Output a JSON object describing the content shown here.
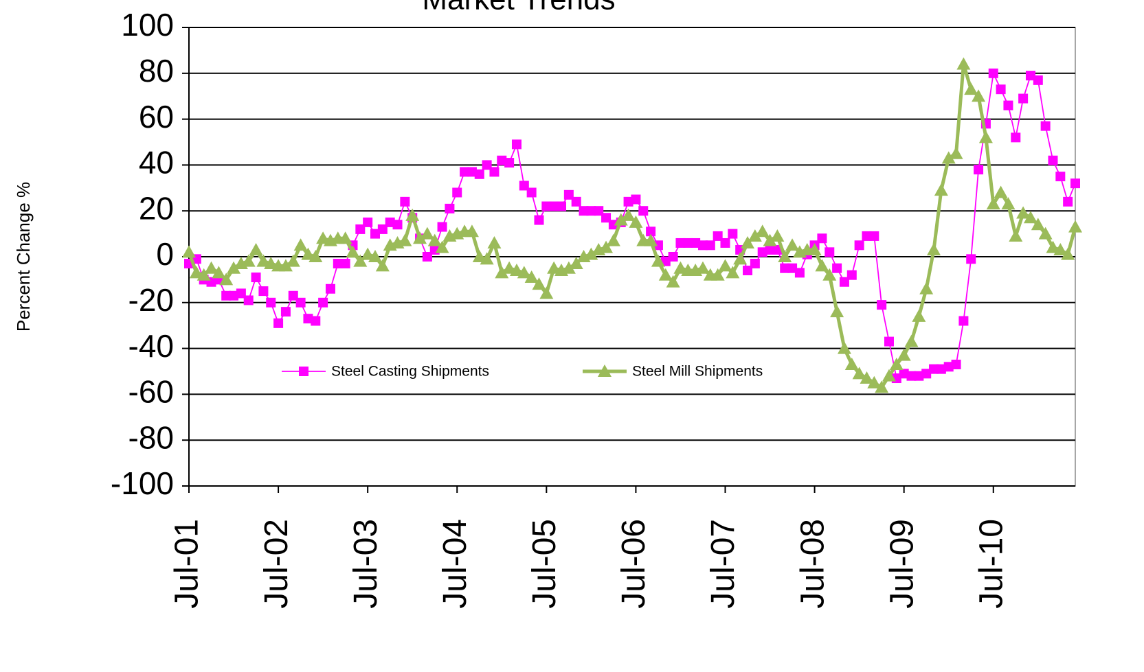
{
  "chart_data": {
    "type": "line",
    "title": "Market Trends",
    "y_label": "Percent Change %",
    "x": [
      "2001-07",
      "2001-08",
      "2001-09",
      "2001-10",
      "2001-11",
      "2001-12",
      "2002-01",
      "2002-02",
      "2002-03",
      "2002-04",
      "2002-05",
      "2002-06",
      "2002-07",
      "2002-08",
      "2002-09",
      "2002-10",
      "2002-11",
      "2002-12",
      "2003-01",
      "2003-02",
      "2003-03",
      "2003-04",
      "2003-05",
      "2003-06",
      "2003-07",
      "2003-08",
      "2003-09",
      "2003-10",
      "2003-11",
      "2003-12",
      "2004-01",
      "2004-02",
      "2004-03",
      "2004-04",
      "2004-05",
      "2004-06",
      "2004-07",
      "2004-08",
      "2004-09",
      "2004-10",
      "2004-11",
      "2004-12",
      "2005-01",
      "2005-02",
      "2005-03",
      "2005-04",
      "2005-05",
      "2005-06",
      "2005-07",
      "2005-08",
      "2005-09",
      "2005-10",
      "2005-11",
      "2005-12",
      "2006-01",
      "2006-02",
      "2006-03",
      "2006-04",
      "2006-05",
      "2006-06",
      "2006-07",
      "2006-08",
      "2006-09",
      "2006-10",
      "2006-11",
      "2006-12",
      "2007-01",
      "2007-02",
      "2007-03",
      "2007-04",
      "2007-05",
      "2007-06",
      "2007-07",
      "2007-08",
      "2007-09",
      "2007-10",
      "2007-11",
      "2007-12",
      "2008-01",
      "2008-02",
      "2008-03",
      "2008-04",
      "2008-05",
      "2008-06",
      "2008-07",
      "2008-08",
      "2008-09",
      "2008-10",
      "2008-11",
      "2008-12",
      "2009-01",
      "2009-02",
      "2009-03",
      "2009-04",
      "2009-05",
      "2009-06",
      "2009-07",
      "2009-08",
      "2009-09",
      "2009-10",
      "2009-11",
      "2009-12",
      "2010-01",
      "2010-02",
      "2010-03",
      "2010-04",
      "2010-05",
      "2010-06",
      "2010-07",
      "2010-08",
      "2010-09",
      "2010-10",
      "2010-11",
      "2010-12",
      "2011-01",
      "2011-02",
      "2011-03",
      "2011-04",
      "2011-05",
      "2011-06"
    ],
    "series": [
      {
        "name": "Steel Casting Shipments",
        "color": "#ff00ff",
        "marker": "square",
        "values": [
          -3,
          -1,
          -10,
          -11,
          -10,
          -17,
          -17,
          -16,
          -19,
          -9,
          -15,
          -20,
          -29,
          -24,
          -17,
          -20,
          -27,
          -28,
          -20,
          -14,
          -3,
          -3,
          5,
          12,
          15,
          10,
          12,
          15,
          14,
          24,
          17,
          8,
          0,
          3,
          13,
          21,
          28,
          37,
          37,
          36,
          40,
          37,
          42,
          41,
          49,
          31,
          28,
          16,
          22,
          22,
          22,
          27,
          24,
          20,
          20,
          20,
          17,
          14,
          15,
          24,
          25,
          20,
          11,
          5,
          -2,
          0,
          6,
          6,
          6,
          5,
          5,
          9,
          6,
          10,
          3,
          -6,
          -3,
          2,
          3,
          3,
          -5,
          -5,
          -7,
          1,
          5,
          8,
          2,
          -5,
          -11,
          -8,
          5,
          9,
          9,
          -21,
          -37,
          -53,
          -51,
          -52,
          -52,
          -51,
          -49,
          -49,
          -48,
          -47,
          -28,
          -1,
          38,
          58,
          80,
          73,
          66,
          52,
          69,
          79,
          77,
          57,
          42,
          35,
          24,
          32
        ]
      },
      {
        "name": "Steel Mill Shipments",
        "color": "#9bbb59",
        "marker": "triangle",
        "values": [
          2,
          -7,
          -8,
          -5,
          -7,
          -10,
          -5,
          -3,
          -2,
          3,
          -2,
          -3,
          -4,
          -4,
          -2,
          5,
          1,
          0,
          8,
          7,
          8,
          8,
          2,
          -2,
          1,
          0,
          -4,
          5,
          6,
          7,
          18,
          8,
          10,
          7,
          4,
          9,
          10,
          11,
          11,
          0,
          -1,
          6,
          -7,
          -5,
          -6,
          -7,
          -9,
          -12,
          -16,
          -5,
          -6,
          -5,
          -3,
          0,
          1,
          3,
          4,
          7,
          16,
          18,
          15,
          7,
          7,
          -2,
          -8,
          -11,
          -5,
          -6,
          -6,
          -5,
          -8,
          -8,
          -4,
          -7,
          -1,
          6,
          9,
          11,
          7,
          9,
          0,
          5,
          2,
          3,
          3,
          -4,
          -8,
          -24,
          -40,
          -47,
          -51,
          -53,
          -55,
          -57,
          -52,
          -47,
          -43,
          -37,
          -26,
          -14,
          3,
          29,
          43,
          45,
          84,
          73,
          70,
          52,
          23,
          28,
          23,
          9,
          19,
          17,
          14,
          10,
          4,
          3,
          1,
          13
        ]
      }
    ],
    "xlim": [
      "2001-07",
      "2011-06"
    ],
    "xticks": [
      {
        "value": "2001-07",
        "label": "Jul-01"
      },
      {
        "value": "2002-07",
        "label": "Jul-02"
      },
      {
        "value": "2003-07",
        "label": "Jul-03"
      },
      {
        "value": "2004-07",
        "label": "Jul-04"
      },
      {
        "value": "2005-07",
        "label": "Jul-05"
      },
      {
        "value": "2006-07",
        "label": "Jul-06"
      },
      {
        "value": "2007-07",
        "label": "Jul-07"
      },
      {
        "value": "2008-07",
        "label": "Jul-08"
      },
      {
        "value": "2009-07",
        "label": "Jul-09"
      },
      {
        "value": "2010-07",
        "label": "Jul-10"
      }
    ],
    "ylim": [
      -100,
      100
    ],
    "yticks": [
      -100,
      -80,
      -60,
      -40,
      -20,
      0,
      20,
      40,
      60,
      80,
      100
    ],
    "grid": true,
    "legend": "center"
  }
}
